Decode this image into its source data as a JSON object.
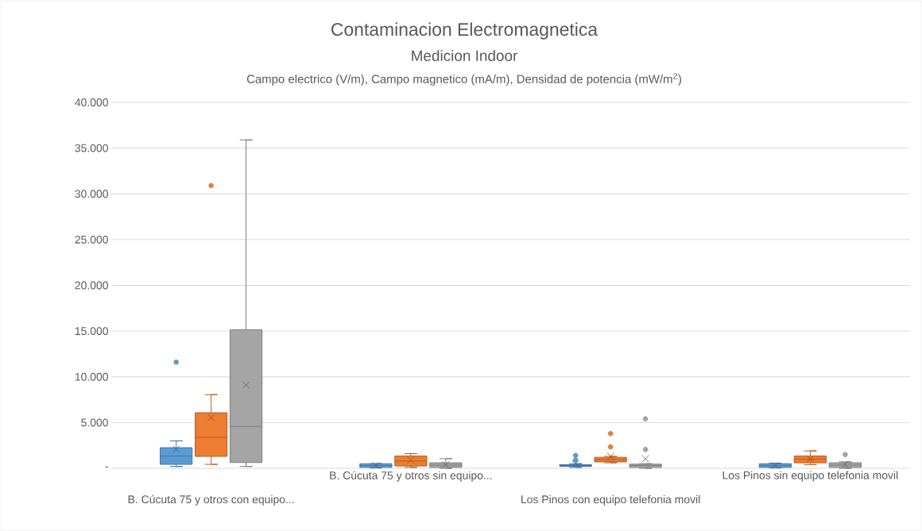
{
  "chart_data": {
    "type": "box",
    "title": "Contaminacion Electromagnetica",
    "subtitle": "Medicion Indoor",
    "annotations": [
      "Campo electrico (V/m), Campo magnetico (mA/m), Densidad de potencia (mW/m$^{2}$)"
    ],
    "categories": [
      "B. Cúcuta 75 y otros con equipo...",
      "B. Cúcuta 75 y otros sin equipo...",
      "Los Pinos con equipo telefonia movil",
      "Los Pinos sin equipo telefonia movil"
    ],
    "series": [
      {
        "color": "#5b9bd5",
        "boxes": [
          {
            "low": 200,
            "q1": 430,
            "median": 1330,
            "q3": 2250,
            "high": 3000,
            "mean": 2100,
            "outliers": [
              11600
            ]
          },
          {
            "low": 50,
            "q1": 100,
            "median": 300,
            "q3": 500,
            "high": 500,
            "mean": 300
          },
          {
            "low": 100,
            "q1": 200,
            "median": 300,
            "q3": 400,
            "high": 500,
            "mean": 500,
            "outliers": [
              900,
              1400
            ]
          },
          {
            "low": 50,
            "q1": 100,
            "median": 300,
            "q3": 500,
            "high": 550,
            "mean": 300
          }
        ]
      },
      {
        "color": "#ed7d31",
        "boxes": [
          {
            "low": 430,
            "q1": 1300,
            "median": 3380,
            "q3": 6070,
            "high": 8050,
            "mean": 5550,
            "outliers": [
              30900
            ]
          },
          {
            "low": 100,
            "q1": 250,
            "median": 800,
            "q3": 1350,
            "high": 1600,
            "mean": 900
          },
          {
            "low": 600,
            "q1": 700,
            "median": 950,
            "q3": 1200,
            "high": 1300,
            "mean": 1300,
            "outliers": [
              2350,
              3800
            ]
          },
          {
            "low": 400,
            "q1": 600,
            "median": 1000,
            "q3": 1350,
            "high": 1900,
            "mean": 1000
          }
        ]
      },
      {
        "color": "#a5a5a5",
        "boxes": [
          {
            "low": 200,
            "q1": 630,
            "median": 4570,
            "q3": 15150,
            "high": 35900,
            "mean": 9100
          },
          {
            "low": 0,
            "q1": 100,
            "median": 350,
            "q3": 600,
            "high": 1050,
            "mean": 400
          },
          {
            "low": 0,
            "q1": 100,
            "median": 300,
            "q3": 450,
            "high": 500,
            "mean": 1050,
            "outliers": [
              2050,
              5400
            ]
          },
          {
            "low": 0,
            "q1": 100,
            "median": 350,
            "q3": 600,
            "high": 700,
            "mean": 400,
            "outliers": [
              1500
            ]
          }
        ]
      }
    ],
    "ylim": [
      0,
      40000
    ],
    "yticks": [
      {
        "value": 0,
        "label": "-"
      },
      {
        "value": 5000,
        "label": "5.000"
      },
      {
        "value": 10000,
        "label": "10.000"
      },
      {
        "value": 15000,
        "label": "15.000"
      },
      {
        "value": 20000,
        "label": "20.000"
      },
      {
        "value": 25000,
        "label": "25.000"
      },
      {
        "value": 30000,
        "label": "30.000"
      },
      {
        "value": 35000,
        "label": "35.000"
      },
      {
        "value": 40000,
        "label": "40.000"
      }
    ],
    "grid": "y",
    "marker": "cross"
  }
}
